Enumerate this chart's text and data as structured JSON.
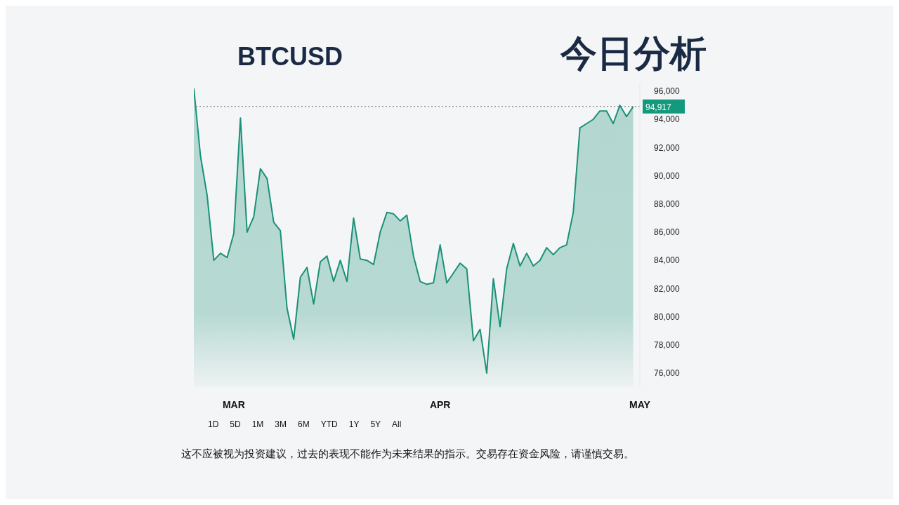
{
  "chart_data": {
    "type": "area",
    "title": "今日分析",
    "subtitle": "BTCUSD",
    "x": [
      "--02-23",
      "--02-24",
      "--02-25",
      "--02-26",
      "--02-27",
      "--02-28",
      "--03-01",
      "--03-02",
      "--03-03",
      "--03-04",
      "--03-05",
      "--03-06",
      "--03-07",
      "--03-08",
      "--03-09",
      "--03-10",
      "--03-11",
      "--03-12",
      "--03-13",
      "--03-14",
      "--03-15",
      "--03-16",
      "--03-17",
      "--03-18",
      "--03-19",
      "--03-20",
      "--03-21",
      "--03-22",
      "--03-23",
      "--03-24",
      "--03-25",
      "--03-26",
      "--03-27",
      "--03-28",
      "--03-29",
      "--03-30",
      "--03-31",
      "--04-01",
      "--04-02",
      "--04-03",
      "--04-04",
      "--04-05",
      "--04-06",
      "--04-07",
      "--04-08",
      "--04-09",
      "--04-10",
      "--04-11",
      "--04-12",
      "--04-13",
      "--04-14",
      "--04-15",
      "--04-16",
      "--04-17",
      "--04-18",
      "--04-19",
      "--04-20",
      "--04-21",
      "--04-22",
      "--04-23",
      "--04-24",
      "--04-25",
      "--04-26",
      "--04-27",
      "--04-28",
      "--04-29",
      "--04-30"
    ],
    "series": [
      {
        "color": "#1a9178",
        "values": [
          96200,
          91400,
          88600,
          84000,
          84500,
          84200,
          85900,
          94100,
          86000,
          87100,
          90500,
          89800,
          86700,
          86100,
          80600,
          78400,
          82800,
          83500,
          80900,
          83900,
          84300,
          82500,
          84000,
          82500,
          87000,
          84100,
          84000,
          83700,
          86000,
          87400,
          87300,
          86800,
          87200,
          84300,
          82500,
          82300,
          82400,
          85100,
          82400,
          83100,
          83800,
          83400,
          78300,
          79100,
          76000,
          82700,
          79300,
          83400,
          85200,
          83600,
          84500,
          83600,
          84000,
          84900,
          84400,
          84900,
          85100,
          87400,
          93400,
          93700,
          94000,
          94600,
          94600,
          93700,
          95000,
          94200,
          94900
        ]
      }
    ],
    "xlim": [
      "--02-23",
      "--05-01"
    ],
    "xticks": [
      {
        "value": "--03-01",
        "label": "MAR"
      },
      {
        "value": "--04-01",
        "label": "APR"
      },
      {
        "value": "--05-01",
        "label": "MAY"
      }
    ],
    "ylim": [
      75000,
      96500
    ],
    "yticks": [
      {
        "value": 76000,
        "label": "76,000"
      },
      {
        "value": 78000,
        "label": "78,000"
      },
      {
        "value": 80000,
        "label": "80,000"
      },
      {
        "value": 82000,
        "label": "82,000"
      },
      {
        "value": 84000,
        "label": "84,000"
      },
      {
        "value": 86000,
        "label": "86,000"
      },
      {
        "value": 88000,
        "label": "88,000"
      },
      {
        "value": 90000,
        "label": "90,000"
      },
      {
        "value": 92000,
        "label": "92,000"
      },
      {
        "value": 94000,
        "label": "94,000"
      },
      {
        "value": 96000,
        "label": "96,000"
      }
    ],
    "ref_lines": [
      {
        "axis": "y",
        "value": 94917,
        "label": "94,917",
        "color": "#666666",
        "line_style": "dotted"
      }
    ],
    "grid": false,
    "legend": false,
    "annotations": [
      "1D",
      "5D",
      "1M",
      "3M",
      "6M",
      "YTD",
      "1Y",
      "5Y",
      "All",
      "这不应被视为投资建议，过去的表现不能作为未来结果的指示。交易存在资金风险，请谨慎交易。"
    ]
  }
}
